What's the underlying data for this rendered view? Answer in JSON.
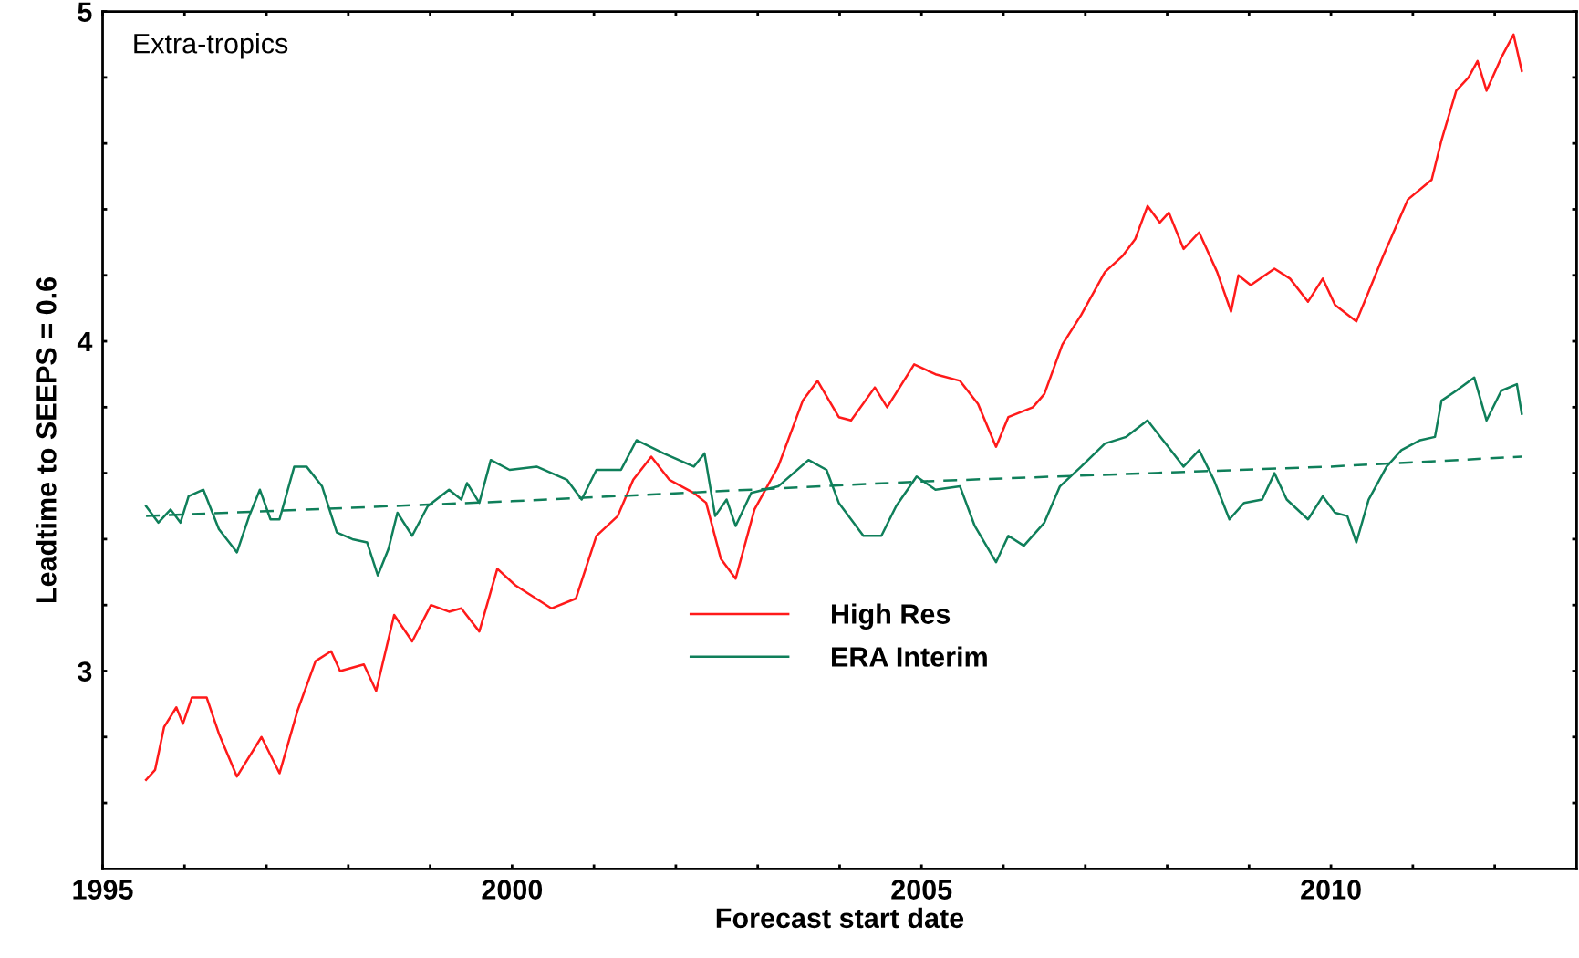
{
  "chart_data": {
    "type": "line",
    "xlabel": "Forecast start date",
    "ylabel": "Leadtime to SEEPS = 0.6",
    "annotations": [
      "Extra-tropics"
    ],
    "xlim": [
      1995,
      2013
    ],
    "ylim": [
      2.4,
      5
    ],
    "xticks": [
      1995,
      {
        "value": 1996,
        "label": null
      },
      {
        "value": 1997,
        "label": null
      },
      {
        "value": 1998,
        "label": null
      },
      {
        "value": 1999,
        "label": null
      },
      2000,
      {
        "value": 2001,
        "label": null
      },
      {
        "value": 2002,
        "label": null
      },
      {
        "value": 2003,
        "label": null
      },
      {
        "value": 2004,
        "label": null
      },
      2005,
      {
        "value": 2006,
        "label": null
      },
      {
        "value": 2007,
        "label": null
      },
      {
        "value": 2008,
        "label": null
      },
      {
        "value": 2009,
        "label": null
      },
      2010,
      {
        "value": 2011,
        "label": null
      },
      {
        "value": 2012,
        "label": null
      }
    ],
    "yticks": [
      {
        "value": 2.6,
        "label": null
      },
      {
        "value": 2.8,
        "label": null
      },
      3,
      {
        "value": 3.2,
        "label": null
      },
      {
        "value": 3.4,
        "label": null
      },
      {
        "value": 3.6,
        "label": null
      },
      {
        "value": 3.8,
        "label": null
      },
      4,
      {
        "value": 4.2,
        "label": null
      },
      {
        "value": 4.4,
        "label": null
      },
      {
        "value": 4.6,
        "label": null
      },
      {
        "value": 4.8,
        "label": null
      },
      5
    ],
    "grid": false,
    "legend": "bottom",
    "marker": "none",
    "series": [
      {
        "name": "High Res",
        "color": "#ff1a1a",
        "line_style": "solid",
        "x": [
          1995.53,
          1995.64,
          1995.75,
          1995.9,
          1995.98,
          1996.09,
          1996.27,
          1996.42,
          1996.64,
          1996.94,
          1997.16,
          1997.38,
          1997.6,
          1997.79,
          1997.9,
          1998.19,
          1998.34,
          1998.56,
          1998.78,
          1999.01,
          1999.23,
          1999.38,
          1999.6,
          1999.82,
          2000.04,
          2000.48,
          2000.78,
          2001.03,
          2001.29,
          2001.48,
          2001.7,
          2001.92,
          2002.22,
          2002.37,
          2002.55,
          2002.73,
          2002.96,
          2003.25,
          2003.55,
          2003.73,
          2003.99,
          2004.14,
          2004.43,
          2004.58,
          2004.91,
          2005.17,
          2005.47,
          2005.69,
          2005.91,
          2006.06,
          2006.36,
          2006.5,
          2006.72,
          2006.95,
          2007.24,
          2007.46,
          2007.61,
          2007.76,
          2007.91,
          2008.02,
          2008.2,
          2008.39,
          2008.61,
          2008.78,
          2008.87,
          2009.02,
          2009.31,
          2009.5,
          2009.72,
          2009.9,
          2010.05,
          2010.31,
          2010.46,
          2010.64,
          2010.94,
          2011.23,
          2011.35,
          2011.53,
          2011.68,
          2011.79,
          2011.9,
          2012.08,
          2012.23,
          2012.33
        ],
        "values": [
          2.67,
          2.7,
          2.83,
          2.89,
          2.84,
          2.92,
          2.92,
          2.81,
          2.68,
          2.8,
          2.69,
          2.88,
          3.03,
          3.06,
          3.0,
          3.02,
          2.94,
          3.17,
          3.09,
          3.2,
          3.18,
          3.19,
          3.12,
          3.31,
          3.26,
          3.19,
          3.22,
          3.41,
          3.47,
          3.58,
          3.65,
          3.58,
          3.54,
          3.51,
          3.34,
          3.28,
          3.49,
          3.62,
          3.82,
          3.88,
          3.77,
          3.76,
          3.86,
          3.8,
          3.93,
          3.9,
          3.88,
          3.81,
          3.68,
          3.77,
          3.8,
          3.84,
          3.99,
          4.08,
          4.21,
          4.26,
          4.31,
          4.41,
          4.36,
          4.39,
          4.28,
          4.33,
          4.21,
          4.09,
          4.2,
          4.17,
          4.22,
          4.19,
          4.12,
          4.19,
          4.11,
          4.06,
          4.15,
          4.26,
          4.43,
          4.49,
          4.61,
          4.76,
          4.8,
          4.85,
          4.76,
          4.86,
          4.93,
          4.82
        ]
      },
      {
        "name": "ERA Interim",
        "color": "#0f7f5a",
        "line_style": "solid",
        "x": [
          1995.53,
          1995.68,
          1995.83,
          1995.95,
          1996.05,
          1996.23,
          1996.42,
          1996.64,
          1996.79,
          1996.92,
          1997.05,
          1997.16,
          1997.34,
          1997.49,
          1997.68,
          1997.86,
          1998.05,
          1998.23,
          1998.36,
          1998.49,
          1998.6,
          1998.78,
          1998.97,
          1999.23,
          1999.38,
          1999.45,
          1999.6,
          1999.74,
          1999.97,
          2000.3,
          2000.67,
          2000.85,
          2001.03,
          2001.33,
          2001.52,
          2001.85,
          2002.22,
          2002.35,
          2002.48,
          2002.62,
          2002.73,
          2002.92,
          2003.25,
          2003.62,
          2003.84,
          2003.99,
          2004.29,
          2004.51,
          2004.69,
          2004.94,
          2005.17,
          2005.47,
          2005.65,
          2005.91,
          2006.06,
          2006.25,
          2006.5,
          2006.69,
          2006.95,
          2007.24,
          2007.5,
          2007.76,
          2007.98,
          2008.2,
          2008.39,
          2008.57,
          2008.76,
          2008.94,
          2009.16,
          2009.31,
          2009.46,
          2009.72,
          2009.9,
          2010.05,
          2010.2,
          2010.31,
          2010.46,
          2010.68,
          2010.86,
          2011.09,
          2011.27,
          2011.35,
          2011.53,
          2011.75,
          2011.9,
          2012.08,
          2012.27,
          2012.33
        ],
        "values": [
          3.5,
          3.45,
          3.49,
          3.45,
          3.53,
          3.55,
          3.43,
          3.36,
          3.47,
          3.55,
          3.46,
          3.46,
          3.62,
          3.62,
          3.56,
          3.42,
          3.4,
          3.39,
          3.29,
          3.37,
          3.48,
          3.41,
          3.5,
          3.55,
          3.52,
          3.57,
          3.51,
          3.64,
          3.61,
          3.62,
          3.58,
          3.52,
          3.61,
          3.61,
          3.7,
          3.66,
          3.62,
          3.66,
          3.47,
          3.52,
          3.44,
          3.54,
          3.56,
          3.64,
          3.61,
          3.51,
          3.41,
          3.41,
          3.5,
          3.59,
          3.55,
          3.56,
          3.44,
          3.33,
          3.41,
          3.38,
          3.45,
          3.56,
          3.62,
          3.69,
          3.71,
          3.76,
          3.69,
          3.62,
          3.67,
          3.58,
          3.46,
          3.51,
          3.52,
          3.6,
          3.52,
          3.46,
          3.53,
          3.48,
          3.47,
          3.39,
          3.52,
          3.62,
          3.67,
          3.7,
          3.71,
          3.82,
          3.85,
          3.89,
          3.76,
          3.85,
          3.87,
          3.78
        ]
      },
      {
        "color": "#0f7f5a",
        "line_style": "dashed",
        "x": [
          1995.53,
          2000,
          2005,
          2010,
          2012.33
        ],
        "values": [
          3.47,
          3.515,
          3.575,
          3.62,
          3.65
        ]
      }
    ]
  }
}
